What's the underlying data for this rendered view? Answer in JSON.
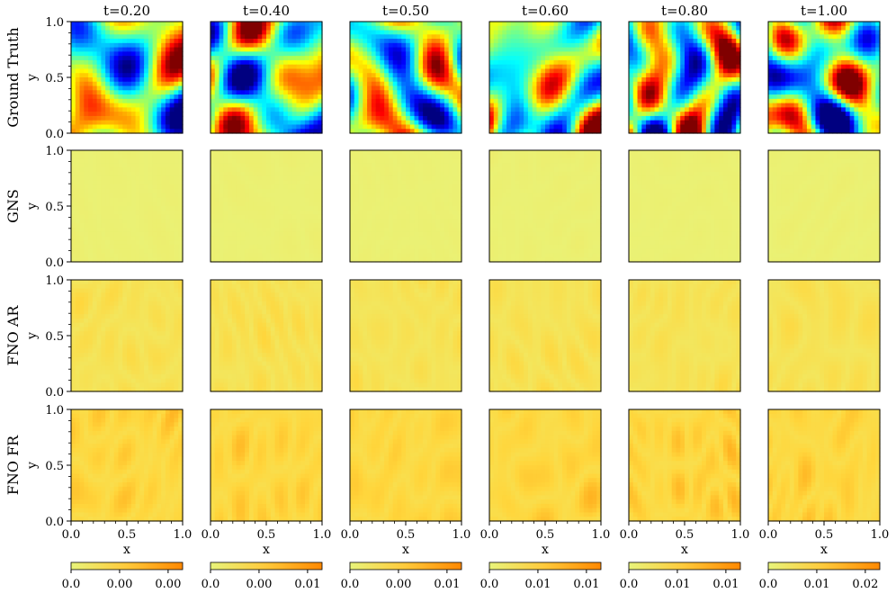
{
  "chart_data": {
    "type": "heatmap",
    "layout": "grid of 4 rows x 6 columns of 2D field heatmaps",
    "columns": [
      "t=0.20",
      "t=0.40",
      "t=0.50",
      "t=0.60",
      "t=0.80",
      "t=1.00"
    ],
    "rows": [
      {
        "label": "Ground Truth",
        "colormap": "jet",
        "range": "full"
      },
      {
        "label": "GNS",
        "colormap": "error",
        "range": "very low"
      },
      {
        "label": "FNO AR",
        "colormap": "error",
        "range": "low"
      },
      {
        "label": "FNO FR",
        "colormap": "error",
        "range": "moderate"
      }
    ],
    "xlabel": "x",
    "ylabel": "y",
    "xlim": [
      0.0,
      1.0
    ],
    "ylim": [
      0.0,
      1.0
    ],
    "x_ticks": [
      "0.0",
      "0.5",
      "1.0"
    ],
    "y_ticks": [
      "0.0",
      "0.5",
      "1.0"
    ],
    "colorbars": [
      {
        "column": "t=0.20",
        "ticks": [
          "0.0",
          "0.00",
          "0.00"
        ]
      },
      {
        "column": "t=0.40",
        "ticks": [
          "0.0",
          "0.00",
          "0.01"
        ]
      },
      {
        "column": "t=0.50",
        "ticks": [
          "0.0",
          "0.00",
          "0.01"
        ]
      },
      {
        "column": "t=0.60",
        "ticks": [
          "0.0",
          "0.01",
          "0.01"
        ]
      },
      {
        "column": "t=0.80",
        "ticks": [
          "0.0",
          "0.01",
          "0.01"
        ]
      },
      {
        "column": "t=1.00",
        "ticks": [
          "0.0",
          "0.01",
          "0.02"
        ]
      }
    ],
    "colorbar_colormap": [
      "#e8f47a",
      "#ff8800"
    ],
    "grid": false,
    "legend": "none"
  }
}
